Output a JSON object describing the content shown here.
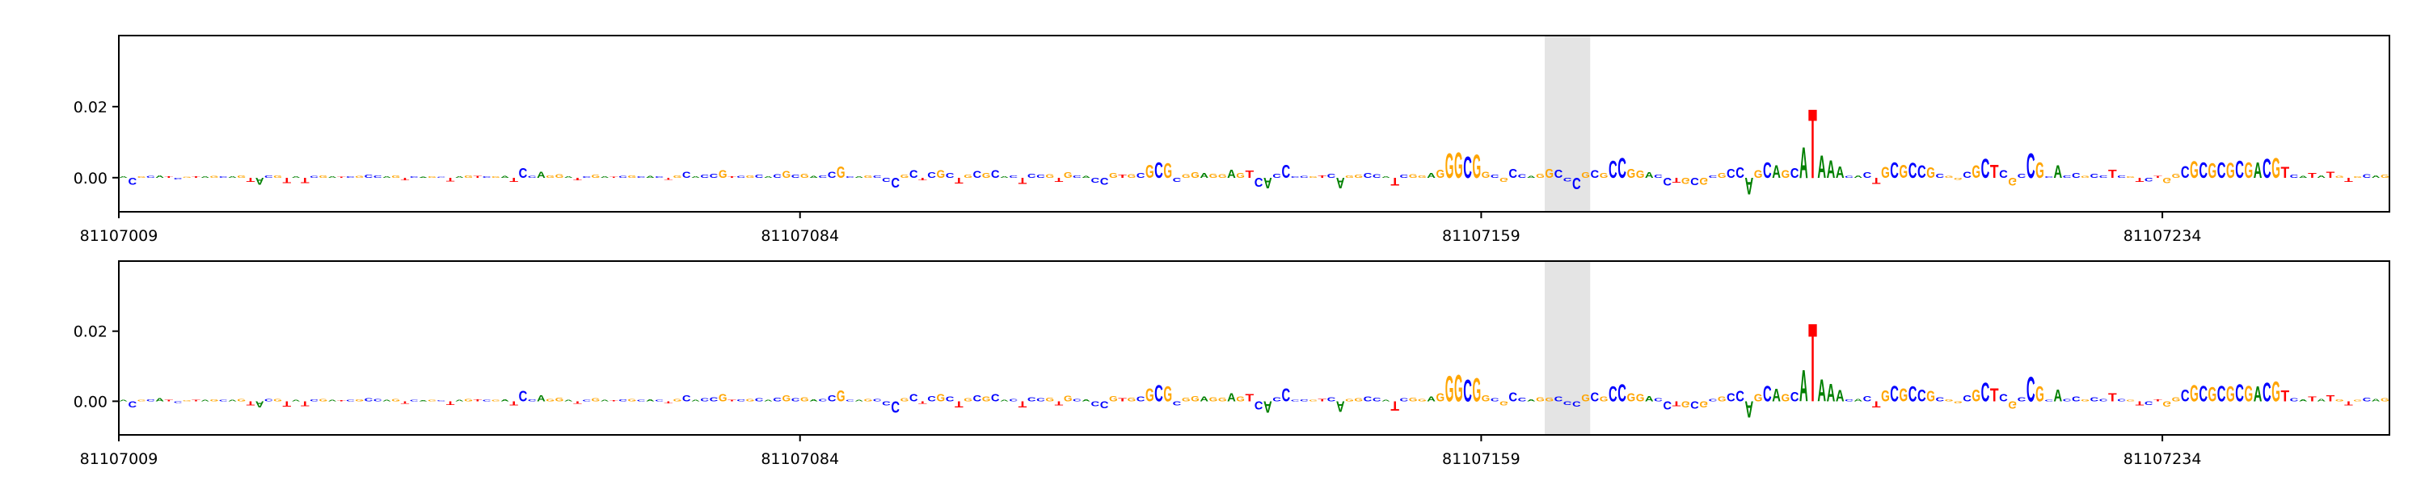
{
  "chart_data": [
    {
      "type": "logo",
      "sequence": [
        "A",
        "C",
        "G",
        "C",
        "A",
        "T",
        "C",
        "G",
        "T",
        "A",
        "G",
        "C",
        "A",
        "G",
        "T",
        "A",
        "C",
        "G",
        "T",
        "A",
        "T",
        "C",
        "G",
        "A",
        "T",
        "C",
        "G",
        "C",
        "C",
        "A",
        "G",
        "T",
        "C",
        "A",
        "G",
        "C",
        "T",
        "A",
        "G",
        "T",
        "C",
        "G",
        "A",
        "T",
        "C",
        "C",
        "A",
        "G",
        "G",
        "A",
        "T",
        "C",
        "G",
        "A",
        "T",
        "C",
        "G",
        "C",
        "A",
        "C",
        "T",
        "G",
        "C",
        "A",
        "C",
        "C",
        "G",
        "T",
        "C",
        "G",
        "C",
        "A",
        "C",
        "G",
        "C",
        "G",
        "A",
        "C",
        "C",
        "G",
        "C",
        "A",
        "G",
        "C",
        "C",
        "C",
        "G",
        "C",
        "T",
        "C",
        "G",
        "C",
        "T",
        "G",
        "C",
        "G",
        "C",
        "A",
        "C",
        "T",
        "C",
        "C",
        "G",
        "T",
        "G",
        "C",
        "A",
        "C",
        "C",
        "G",
        "T",
        "G",
        "C",
        "G",
        "C",
        "G",
        "C",
        "G",
        "G",
        "A",
        "G",
        "G",
        "A",
        "G",
        "T",
        "C",
        "A",
        "C",
        "C",
        "C",
        "C",
        "G",
        "T",
        "C",
        "A",
        "G",
        "G",
        "C",
        "C",
        "A",
        "T",
        "C",
        "G",
        "G",
        "A",
        "G",
        "G",
        "G",
        "C",
        "G",
        "G",
        "C",
        "G",
        "C",
        "C",
        "A",
        "G",
        "G",
        "C",
        "C",
        "C",
        "G",
        "C",
        "G",
        "C",
        "C",
        "G",
        "G",
        "A",
        "C",
        "C",
        "T",
        "G",
        "C",
        "G",
        "C",
        "G",
        "C",
        "C",
        "A",
        "G",
        "C",
        "A",
        "G",
        "C",
        "A",
        "T",
        "A",
        "A",
        "A",
        "C",
        "A",
        "C",
        "T",
        "G",
        "C",
        "G",
        "C",
        "C",
        "G",
        "C",
        "G",
        "G",
        "C",
        "G",
        "C",
        "T",
        "C",
        "G",
        "C",
        "C",
        "G",
        "C",
        "A",
        "C",
        "C",
        "G",
        "C",
        "C",
        "T",
        "C",
        "G",
        "T",
        "C",
        "T",
        "G",
        "G",
        "C",
        "G",
        "C",
        "G",
        "C",
        "G",
        "C",
        "G",
        "A",
        "C",
        "G",
        "T",
        "C",
        "A",
        "T",
        "A",
        "T",
        "G",
        "T",
        "G",
        "C",
        "A",
        "G"
      ],
      "values": [
        0.0005,
        -0.002,
        0.0004,
        0.0006,
        0.0008,
        0.0005,
        -0.0004,
        0.0003,
        0.0004,
        0.0005,
        0.0006,
        0.0004,
        0.0005,
        0.0007,
        -0.0012,
        -0.002,
        0.0008,
        0.0007,
        -0.0015,
        0.0005,
        -0.0015,
        0.0006,
        0.0008,
        0.0004,
        0.0003,
        0.0005,
        0.0006,
        0.0009,
        0.0007,
        0.0004,
        0.0008,
        -0.0008,
        0.0005,
        0.0003,
        0.0004,
        0.0003,
        -0.001,
        0.0004,
        0.0008,
        0.0006,
        0.0005,
        0.0004,
        0.0006,
        -0.0012,
        0.0028,
        0.0006,
        0.0018,
        0.0008,
        0.001,
        0.0005,
        -0.0008,
        0.0005,
        0.0009,
        0.0004,
        0.0003,
        0.0006,
        0.0007,
        0.0005,
        0.0006,
        0.0005,
        -0.0006,
        0.0007,
        0.0018,
        0.0005,
        0.0009,
        0.0012,
        0.0022,
        0.0004,
        0.0006,
        0.0008,
        0.0009,
        0.0005,
        0.0011,
        0.0019,
        0.0009,
        0.0012,
        0.0006,
        0.0008,
        0.0018,
        0.0034,
        0.0005,
        0.0004,
        0.0007,
        0.0008,
        -0.0012,
        -0.0028,
        0.0009,
        0.0022,
        -0.0008,
        0.0016,
        0.0022,
        0.0014,
        -0.0016,
        0.0009,
        0.0019,
        0.0014,
        0.0022,
        0.0005,
        0.0008,
        -0.0018,
        0.0012,
        0.0009,
        0.0011,
        -0.0012,
        0.0017,
        0.0007,
        0.0006,
        -0.0014,
        -0.002,
        0.0014,
        0.0009,
        0.0011,
        0.0014,
        0.0038,
        0.0046,
        0.0042,
        -0.0012,
        0.0011,
        0.0016,
        0.0014,
        0.0012,
        0.0011,
        0.0024,
        0.0013,
        0.0021,
        -0.0025,
        -0.003,
        0.0012,
        0.0038,
        0.0005,
        0.0006,
        0.0005,
        0.0008,
        0.0012,
        -0.003,
        0.0007,
        0.0009,
        0.0014,
        0.0011,
        0.0005,
        -0.0022,
        0.0009,
        0.001,
        0.0008,
        0.0014,
        0.0024,
        0.0072,
        0.0075,
        0.0062,
        0.0068,
        0.0018,
        0.0009,
        -0.0012,
        0.0026,
        0.0011,
        0.0006,
        0.0012,
        0.0026,
        0.0024,
        -0.001,
        -0.0034,
        0.0016,
        0.0022,
        0.0014,
        0.005,
        0.0058,
        0.0025,
        0.0021,
        0.0016,
        0.0009,
        -0.0022,
        -0.0014,
        -0.0018,
        -0.0021,
        -0.0019,
        0.0008,
        0.0013,
        0.0025,
        0.003,
        -0.0048,
        0.0022,
        0.0046,
        0.0037,
        0.0022,
        0.0028,
        0.009,
        0.02,
        0.0065,
        0.0052,
        0.0034,
        0.0006,
        0.0008,
        0.0016,
        -0.0018,
        0.0032,
        0.0046,
        0.0038,
        0.0044,
        0.0036,
        0.0031,
        0.0012,
        0.0006,
        -0.0006,
        0.0018,
        0.0036,
        0.0056,
        0.0038,
        0.0022,
        -0.0022,
        0.0012,
        0.0072,
        0.0045,
        0.0005,
        0.0036,
        0.0008,
        0.0014,
        0.0006,
        0.0012,
        0.0008,
        0.0024,
        0.0008,
        0.0005,
        -0.0012,
        -0.001,
        0.0006,
        -0.0015,
        0.0012,
        0.0035,
        0.0048,
        0.0046,
        0.0042,
        0.0046,
        0.0044,
        0.005,
        0.0046,
        0.0045,
        0.0056,
        0.0058,
        0.0032,
        0.0009,
        0.0006,
        0.0014,
        0.0008,
        0.0018,
        0.0006,
        -0.0012,
        0.0005,
        0.0011,
        0.0007,
        0.0009
      ],
      "colors": {
        "A": "#008000",
        "C": "#0000ff",
        "G": "#ffa500",
        "T": "#ff0000"
      },
      "xlim": [
        81107009,
        81107259
      ],
      "xticks": [
        81107009,
        81107084,
        81107159,
        81107234
      ],
      "ylim": [
        -0.0096,
        0.04
      ],
      "yticks": [
        {
          "value": 0,
          "label": "0.00"
        },
        {
          "value": 0.02,
          "label": "0.02"
        }
      ],
      "highlight": [
        81107166,
        81107171
      ]
    },
    {
      "type": "logo",
      "sequence": [
        "A",
        "C",
        "G",
        "C",
        "A",
        "T",
        "C",
        "G",
        "T",
        "A",
        "G",
        "C",
        "A",
        "G",
        "T",
        "A",
        "C",
        "G",
        "T",
        "A",
        "T",
        "C",
        "G",
        "A",
        "T",
        "C",
        "G",
        "C",
        "C",
        "A",
        "G",
        "T",
        "C",
        "A",
        "G",
        "C",
        "T",
        "A",
        "G",
        "T",
        "C",
        "G",
        "A",
        "T",
        "C",
        "C",
        "A",
        "G",
        "G",
        "A",
        "T",
        "C",
        "G",
        "A",
        "T",
        "C",
        "G",
        "C",
        "A",
        "C",
        "T",
        "G",
        "C",
        "A",
        "C",
        "C",
        "G",
        "T",
        "C",
        "G",
        "C",
        "A",
        "C",
        "G",
        "C",
        "G",
        "A",
        "C",
        "C",
        "G",
        "C",
        "A",
        "G",
        "C",
        "C",
        "C",
        "G",
        "C",
        "T",
        "C",
        "G",
        "C",
        "T",
        "G",
        "C",
        "G",
        "C",
        "A",
        "C",
        "T",
        "C",
        "C",
        "G",
        "T",
        "G",
        "C",
        "A",
        "C",
        "C",
        "G",
        "T",
        "G",
        "C",
        "G",
        "C",
        "G",
        "C",
        "G",
        "G",
        "A",
        "G",
        "G",
        "A",
        "G",
        "T",
        "C",
        "A",
        "C",
        "C",
        "C",
        "C",
        "G",
        "T",
        "C",
        "A",
        "G",
        "G",
        "C",
        "C",
        "A",
        "T",
        "C",
        "G",
        "G",
        "A",
        "G",
        "G",
        "G",
        "C",
        "G",
        "G",
        "C",
        "G",
        "C",
        "C",
        "A",
        "G",
        "G",
        "C",
        "C",
        "C",
        "G",
        "C",
        "G",
        "C",
        "C",
        "G",
        "G",
        "A",
        "C",
        "C",
        "T",
        "G",
        "C",
        "G",
        "C",
        "G",
        "C",
        "C",
        "A",
        "G",
        "C",
        "A",
        "G",
        "C",
        "A",
        "T",
        "A",
        "A",
        "A",
        "C",
        "A",
        "C",
        "T",
        "G",
        "C",
        "G",
        "C",
        "C",
        "G",
        "C",
        "G",
        "G",
        "C",
        "G",
        "C",
        "T",
        "C",
        "G",
        "C",
        "C",
        "G",
        "C",
        "A",
        "C",
        "C",
        "G",
        "C",
        "C",
        "T",
        "C",
        "G",
        "T",
        "C",
        "T",
        "G",
        "G",
        "C",
        "G",
        "C",
        "G",
        "C",
        "G",
        "C",
        "G",
        "A",
        "C",
        "G",
        "T",
        "C",
        "A",
        "T",
        "A",
        "T",
        "G",
        "T",
        "G",
        "C",
        "A",
        "G"
      ],
      "values": [
        0.0005,
        -0.0018,
        0.0004,
        0.0006,
        0.0009,
        0.0005,
        -0.0004,
        0.0003,
        0.0004,
        0.0005,
        0.0006,
        0.0004,
        0.0005,
        0.0007,
        -0.0012,
        -0.0019,
        0.0008,
        0.0007,
        -0.0015,
        0.0005,
        -0.0014,
        0.0006,
        0.0008,
        0.0004,
        0.0003,
        0.0005,
        0.0006,
        0.0009,
        0.0007,
        0.0004,
        0.0008,
        -0.0008,
        0.0005,
        0.0003,
        0.0004,
        0.0003,
        -0.001,
        0.0004,
        0.0008,
        0.0006,
        0.0005,
        0.0004,
        0.0006,
        -0.0012,
        0.003,
        0.0006,
        0.0018,
        0.0008,
        0.001,
        0.0005,
        -0.0008,
        0.0005,
        0.0009,
        0.0004,
        0.0003,
        0.0006,
        0.0007,
        0.0005,
        0.0006,
        0.0005,
        -0.0006,
        0.0007,
        0.0018,
        0.0005,
        0.0009,
        0.0012,
        0.0022,
        0.0004,
        0.0006,
        0.0008,
        0.0009,
        0.0005,
        0.0011,
        0.0019,
        0.0009,
        0.0012,
        0.0006,
        0.0008,
        0.0018,
        0.0032,
        0.0005,
        0.0004,
        0.0007,
        0.0008,
        -0.0012,
        -0.0034,
        0.0009,
        0.0022,
        -0.0008,
        0.0016,
        0.0022,
        0.0014,
        -0.0018,
        0.0009,
        0.0019,
        0.0014,
        0.0022,
        0.0005,
        0.0008,
        -0.0018,
        0.0012,
        0.0009,
        0.0011,
        -0.0012,
        0.0017,
        0.0007,
        0.0006,
        -0.0014,
        -0.002,
        0.0016,
        0.0009,
        0.0011,
        0.0014,
        0.0038,
        0.0048,
        0.0044,
        -0.0012,
        0.0011,
        0.0016,
        0.0014,
        0.0012,
        0.0011,
        0.0024,
        0.0013,
        0.0021,
        -0.0025,
        -0.0034,
        0.0012,
        0.0038,
        0.0005,
        0.0006,
        0.0005,
        0.0008,
        0.0012,
        -0.003,
        0.0007,
        0.0009,
        0.0014,
        0.0011,
        0.0005,
        -0.0028,
        0.0009,
        0.001,
        0.0008,
        0.0014,
        0.0024,
        0.0076,
        0.0078,
        0.0064,
        0.007,
        0.0018,
        0.0009,
        -0.0012,
        0.0026,
        0.0011,
        0.0006,
        0.0012,
        0.001,
        0.0014,
        -0.001,
        -0.0016,
        0.002,
        0.0026,
        0.0014,
        0.0044,
        0.005,
        0.0025,
        0.0021,
        0.0016,
        0.0009,
        -0.0024,
        -0.0014,
        -0.0018,
        -0.0021,
        -0.0019,
        0.0008,
        0.0013,
        0.0025,
        0.003,
        -0.0048,
        0.0022,
        0.0046,
        0.0037,
        0.0022,
        0.0028,
        0.0092,
        0.023,
        0.0065,
        0.0052,
        0.0034,
        0.0006,
        0.0008,
        0.0016,
        -0.0018,
        0.0032,
        0.0046,
        0.0038,
        0.0044,
        0.0036,
        0.0031,
        0.0012,
        0.0006,
        -0.0006,
        0.0018,
        0.0036,
        0.0056,
        0.0038,
        0.0022,
        -0.0022,
        0.0012,
        0.0072,
        0.0045,
        0.0005,
        0.0036,
        0.0008,
        0.0014,
        0.0006,
        0.0012,
        0.0008,
        0.0024,
        0.0008,
        0.0005,
        -0.0012,
        -0.001,
        0.0006,
        -0.0015,
        0.0012,
        0.0035,
        0.0048,
        0.0046,
        0.0042,
        0.0046,
        0.0044,
        0.005,
        0.0046,
        0.0045,
        0.0056,
        0.0058,
        0.0032,
        0.0009,
        0.0006,
        0.0014,
        0.0008,
        0.0018,
        0.0006,
        -0.0012,
        0.0005,
        0.0011,
        0.0007,
        0.0009
      ],
      "colors": {
        "A": "#008000",
        "C": "#0000ff",
        "G": "#ffa500",
        "T": "#ff0000"
      },
      "xlim": [
        81107009,
        81107259
      ],
      "xticks": [
        81107009,
        81107084,
        81107159,
        81107234
      ],
      "ylim": [
        -0.0096,
        0.04
      ],
      "yticks": [
        {
          "value": 0,
          "label": "0.00"
        },
        {
          "value": 0.02,
          "label": "0.02"
        }
      ],
      "highlight": [
        81107166,
        81107171
      ]
    }
  ]
}
